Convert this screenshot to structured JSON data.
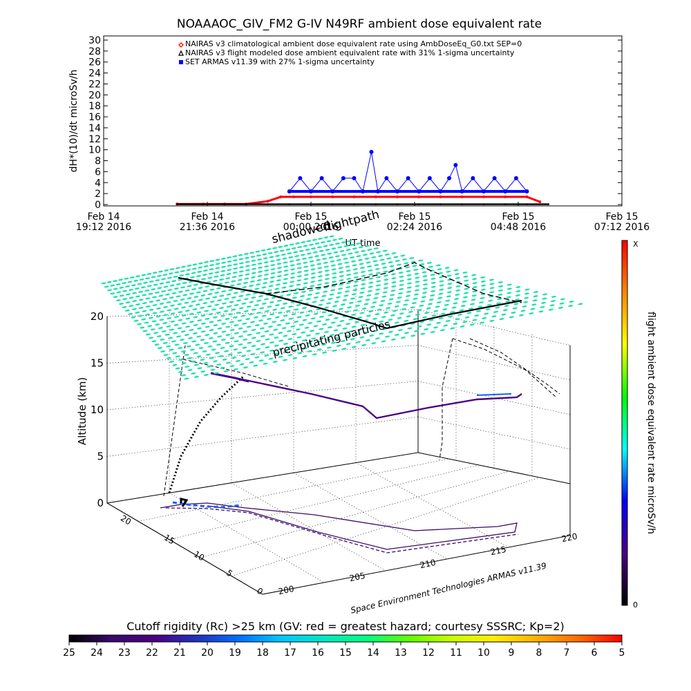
{
  "chart_data": [
    {
      "type": "scatter",
      "title": "NOAAAOC_GIV_FM2 G-IV    N49RF  ambient dose equivalent rate",
      "ylabel": "dH*(10)/dt microSv/h",
      "xlabel": "UT time",
      "ylim": [
        0,
        30
      ],
      "yticks": [
        "0",
        "2",
        "4",
        "6",
        "8",
        "10",
        "12",
        "14",
        "16",
        "18",
        "20",
        "22",
        "24",
        "26",
        "28",
        "30"
      ],
      "xticks": [
        {
          "day": "Feb 14",
          "time": "19:12 2016"
        },
        {
          "day": "Feb 14",
          "time": "21:36 2016"
        },
        {
          "day": "Feb 15",
          "time": "00:00 2016"
        },
        {
          "day": "Feb 15",
          "time": "02:24 2016"
        },
        {
          "day": "Feb 15",
          "time": "04:48 2016"
        },
        {
          "day": "Feb 15",
          "time": "07:12 2016"
        }
      ],
      "xlim_hours": [
        19.2,
        31.2
      ],
      "legend": [
        {
          "label": "NAIRAS v3 climatological ambient dose equivalent rate using AmbDoseEq_G0.txt SEP=0",
          "color": "#ff0000",
          "marker": "diamond"
        },
        {
          "label": "NAIRAS v3 flight modeled dose ambient equivalent rate with 31% 1-sigma uncertainty",
          "color": "#000000",
          "marker": "triangle"
        },
        {
          "label": "SET ARMAS v11.39 with 27% 1-sigma uncertainty",
          "color": "#0000ff",
          "marker": "square"
        }
      ],
      "series": [
        {
          "name": "NAIRAS v3 climatological ambient dose equivalent rate using AmbDoseEq_G0.txt SEP=0",
          "x_hours": [
            20.9,
            21.5,
            22.0,
            22.5,
            23.0,
            23.3,
            23.6,
            24.0,
            24.5,
            25.0,
            25.5,
            26.0,
            26.5,
            27.0,
            27.5,
            28.0,
            28.5,
            29.0,
            29.3
          ],
          "values": [
            0.1,
            0.1,
            0.1,
            0.1,
            0.6,
            1.4,
            1.4,
            1.4,
            1.4,
            1.4,
            1.4,
            1.4,
            1.4,
            1.4,
            1.4,
            1.4,
            1.4,
            1.4,
            0.5
          ]
        },
        {
          "name": "NAIRAS v3 flight modeled dose ambient equivalent rate with 31% 1-sigma uncertainty",
          "x_hours": [
            20.9,
            21.5,
            22.0,
            22.5,
            23.0,
            23.5,
            24.0,
            24.5,
            25.0,
            25.5,
            26.0,
            26.5,
            27.0,
            27.5,
            28.0,
            28.5,
            29.0,
            29.5
          ],
          "values": [
            0.05,
            0.05,
            0.05,
            0.05,
            0.05,
            0.05,
            0.05,
            0.05,
            0.05,
            0.05,
            0.05,
            0.05,
            0.05,
            0.05,
            0.05,
            0.05,
            0.05,
            0.05
          ]
        },
        {
          "name": "SET ARMAS v11.39 with 27% 1-sigma uncertainty",
          "x_hours": [
            23.5,
            23.75,
            24.0,
            24.25,
            24.5,
            24.75,
            25.0,
            25.2,
            25.4,
            25.55,
            25.75,
            26.0,
            26.25,
            26.5,
            26.75,
            27.0,
            27.2,
            27.35,
            27.5,
            27.75,
            28.0,
            28.25,
            28.5,
            28.75,
            29.0
          ],
          "values": [
            2.4,
            4.8,
            2.4,
            4.8,
            2.4,
            4.8,
            4.8,
            2.4,
            9.6,
            2.4,
            4.8,
            2.4,
            4.8,
            2.4,
            4.8,
            2.4,
            4.8,
            7.2,
            2.4,
            4.8,
            2.4,
            4.8,
            2.4,
            4.8,
            2.4
          ]
        }
      ]
    },
    {
      "type": "scatter",
      "title": "shadowed flightpath",
      "annotations": [
        "shadowed",
        "flightpath",
        "precipitating particles",
        "Space Environment Technologies ARMAS v11.39"
      ],
      "zlabel": "Altitude (km)",
      "zticks": [
        "0",
        "5",
        "10",
        "15",
        "20"
      ],
      "xticks": [
        "200",
        "205",
        "210",
        "215",
        "220"
      ],
      "yticks": [
        "0",
        "5",
        "10",
        "15",
        "20"
      ],
      "colorbar": {
        "label": "flight ambient dose equivalent rate microSv/h",
        "top_label": "X",
        "bottom_label": "0",
        "colors": [
          "#000000",
          "#4b0082",
          "#0000ff",
          "#00ffff",
          "#00ff00",
          "#ffff00",
          "#ff8800",
          "#ff0000"
        ]
      },
      "flight_path": {
        "lon": [
          200.5,
          201.0,
          201.8,
          202.5,
          205.0,
          208.0,
          210.0,
          212.0,
          215.0,
          217.0,
          217.0
        ],
        "lat": [
          19.5,
          18.5,
          17.0,
          16.0,
          20.0,
          20.5,
          17.0,
          13.0,
          15.0,
          16.0,
          18.0
        ],
        "altitude_km": [
          0.0,
          3.0,
          8.0,
          12.8,
          12.8,
          12.0,
          10.0,
          11.0,
          11.5,
          11.5,
          11.8
        ]
      }
    },
    {
      "type": "heatmap",
      "title": "Cutoff rigidity (Rc) >25 km (GV: red = greatest hazard; courtesy SSSRC; Kp=2)",
      "ticks": [
        "25",
        "24",
        "23",
        "22",
        "21",
        "20",
        "19",
        "18",
        "17",
        "16",
        "15",
        "14",
        "13",
        "12",
        "11",
        "10",
        "9",
        "8",
        "7",
        "6",
        "5"
      ],
      "colors": [
        "#000000",
        "#3a0a6a",
        "#4b0082",
        "#2030c0",
        "#0070ff",
        "#00c8ff",
        "#00e8c0",
        "#00ff80",
        "#60ff00",
        "#c8ff00",
        "#ffee00",
        "#ffb000",
        "#ff6a00",
        "#ff0000"
      ]
    }
  ]
}
